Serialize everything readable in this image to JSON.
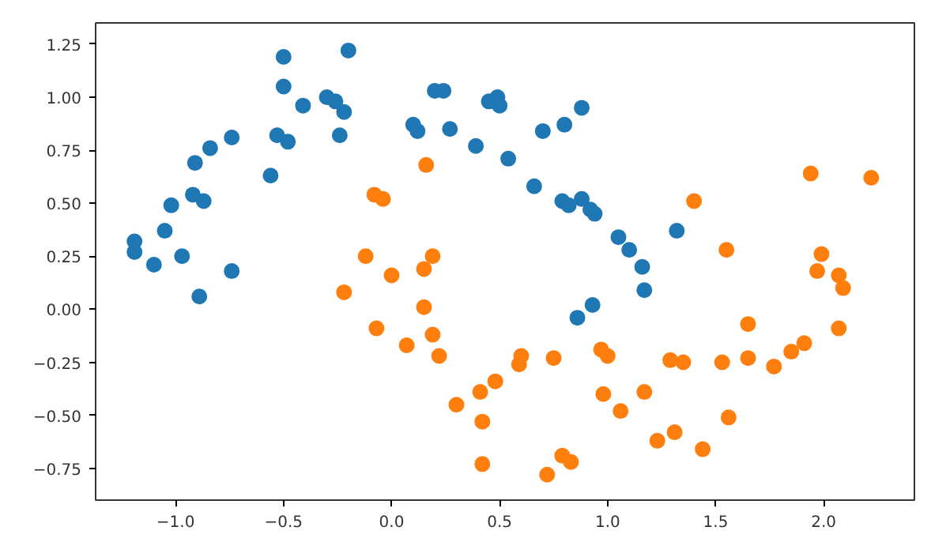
{
  "chart_data": {
    "type": "scatter",
    "marker": "circle",
    "grid": false,
    "xlim": [
      -1.37,
      2.42
    ],
    "ylim": [
      -0.9,
      1.35
    ],
    "xticks": [
      {
        "value": -1.0,
        "label": "−1.0"
      },
      {
        "value": -0.5,
        "label": "−0.5"
      },
      {
        "value": 0.0,
        "label": "0.0"
      },
      {
        "value": 0.5,
        "label": "0.5"
      },
      {
        "value": 1.0,
        "label": "1.0"
      },
      {
        "value": 1.5,
        "label": "1.5"
      },
      {
        "value": 2.0,
        "label": "2.0"
      }
    ],
    "yticks": [
      {
        "value": -0.75,
        "label": "−0.75"
      },
      {
        "value": -0.5,
        "label": "−0.50"
      },
      {
        "value": -0.25,
        "label": "−0.25"
      },
      {
        "value": 0.0,
        "label": "0.00"
      },
      {
        "value": 0.25,
        "label": "0.25"
      },
      {
        "value": 0.5,
        "label": "0.50"
      },
      {
        "value": 0.75,
        "label": "0.75"
      },
      {
        "value": 1.0,
        "label": "1.00"
      },
      {
        "value": 1.25,
        "label": "1.25"
      }
    ],
    "series": [
      {
        "color": "#1f77b4",
        "x": [
          -1.19,
          -1.19,
          -1.1,
          -1.05,
          -1.02,
          -0.97,
          -0.91,
          -0.92,
          -0.87,
          -0.84,
          -0.74,
          -0.74,
          -0.89,
          -0.56,
          -0.53,
          -0.48,
          -0.5,
          -0.5,
          -0.41,
          -0.3,
          -0.26,
          -0.22,
          -0.24,
          -0.2,
          0.1,
          0.12,
          0.2,
          0.24,
          0.27,
          0.39,
          0.45,
          0.49,
          0.5,
          0.54,
          0.7,
          0.8,
          0.88,
          0.66,
          0.79,
          0.82,
          0.88,
          0.92,
          0.94,
          1.05,
          1.1,
          1.16,
          1.32,
          1.17,
          0.93,
          0.86
        ],
        "values": [
          0.32,
          0.27,
          0.21,
          0.37,
          0.49,
          0.25,
          0.69,
          0.54,
          0.51,
          0.76,
          0.81,
          0.18,
          0.06,
          0.63,
          0.82,
          0.79,
          1.19,
          1.05,
          0.96,
          1.0,
          0.98,
          0.93,
          0.82,
          1.22,
          0.87,
          0.84,
          1.03,
          1.03,
          0.85,
          0.77,
          0.98,
          1.0,
          0.96,
          0.71,
          0.84,
          0.87,
          0.95,
          0.58,
          0.51,
          0.49,
          0.52,
          0.47,
          0.45,
          0.34,
          0.28,
          0.2,
          0.37,
          0.09,
          0.02,
          -0.04
        ]
      },
      {
        "color": "#ff7f0e",
        "x": [
          -0.08,
          -0.04,
          0.16,
          -0.12,
          0.0,
          0.15,
          0.19,
          -0.22,
          -0.07,
          0.07,
          0.15,
          0.19,
          0.22,
          0.3,
          0.41,
          0.48,
          0.42,
          0.42,
          0.6,
          0.59,
          0.75,
          0.72,
          0.79,
          0.83,
          0.97,
          1.0,
          0.98,
          1.06,
          1.17,
          1.23,
          1.31,
          1.44,
          1.29,
          1.35,
          1.53,
          1.56,
          1.65,
          1.65,
          1.77,
          1.85,
          1.91,
          2.07,
          1.97,
          2.07,
          2.09,
          1.99,
          1.4,
          1.55,
          1.94,
          2.22
        ],
        "values": [
          0.54,
          0.52,
          0.68,
          0.25,
          0.16,
          0.19,
          0.25,
          0.08,
          -0.09,
          -0.17,
          0.01,
          -0.12,
          -0.22,
          -0.45,
          -0.39,
          -0.34,
          -0.53,
          -0.73,
          -0.22,
          -0.26,
          -0.23,
          -0.78,
          -0.69,
          -0.72,
          -0.19,
          -0.22,
          -0.4,
          -0.48,
          -0.39,
          -0.62,
          -0.58,
          -0.66,
          -0.24,
          -0.25,
          -0.25,
          -0.51,
          -0.07,
          -0.23,
          -0.27,
          -0.2,
          -0.16,
          -0.09,
          0.18,
          0.16,
          0.1,
          0.26,
          0.51,
          0.28,
          0.64,
          0.62
        ]
      }
    ]
  }
}
